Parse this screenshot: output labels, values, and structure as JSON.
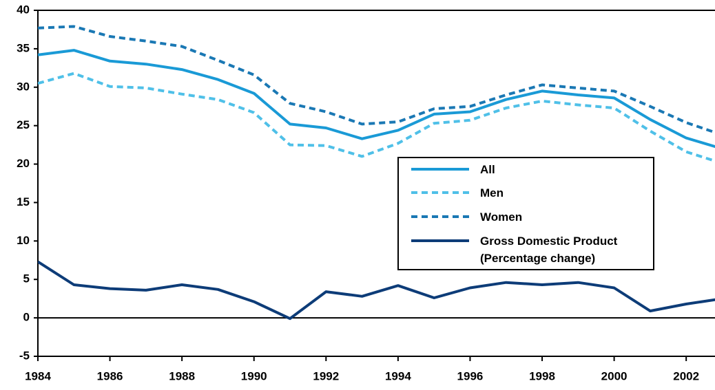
{
  "chart_data": {
    "type": "line",
    "x": [
      1984,
      1985,
      1986,
      1987,
      1988,
      1989,
      1990,
      1991,
      1992,
      1993,
      1994,
      1995,
      1996,
      1997,
      1998,
      1999,
      2000,
      2001,
      2002,
      2003
    ],
    "series": [
      {
        "name": "All",
        "color": "#1a9ad6",
        "line_style": "solid",
        "values": [
          34.2,
          34.8,
          33.4,
          33.0,
          32.3,
          31.0,
          29.2,
          25.2,
          24.7,
          23.3,
          24.4,
          26.5,
          26.8,
          28.4,
          29.5,
          29.0,
          28.6,
          25.8,
          23.4,
          22.0
        ]
      },
      {
        "name": "Men",
        "color": "#4fc0e8",
        "line_style": "dashed",
        "values": [
          30.5,
          31.8,
          30.1,
          29.9,
          29.1,
          28.4,
          26.7,
          22.5,
          22.4,
          21.0,
          22.7,
          25.3,
          25.7,
          27.3,
          28.2,
          27.7,
          27.3,
          24.3,
          21.6,
          20.1
        ]
      },
      {
        "name": "Women",
        "color": "#1a78b4",
        "line_style": "dashed",
        "values": [
          37.7,
          37.9,
          36.6,
          36.0,
          35.3,
          33.5,
          31.6,
          27.9,
          26.8,
          25.2,
          25.5,
          27.2,
          27.5,
          29.0,
          30.3,
          29.9,
          29.5,
          27.5,
          25.4,
          23.8
        ]
      },
      {
        "name": "Gross Domestic Product\n(Percentage change)",
        "color": "#0d3c78",
        "line_style": "solid",
        "values": [
          7.3,
          4.3,
          3.8,
          3.6,
          4.3,
          3.7,
          2.1,
          -0.1,
          3.4,
          2.8,
          4.2,
          2.6,
          3.9,
          4.6,
          4.3,
          4.6,
          3.9,
          0.9,
          1.8,
          2.5
        ]
      }
    ],
    "xlim": [
      1984,
      2002.8
    ],
    "xticks": [
      1984,
      1986,
      1988,
      1990,
      1992,
      1994,
      1996,
      1998,
      2000,
      2002
    ],
    "ylim": [
      -5,
      40
    ],
    "yticks": [
      -5,
      0,
      5,
      10,
      15,
      20,
      25,
      30,
      35,
      40
    ],
    "grid": false
  }
}
